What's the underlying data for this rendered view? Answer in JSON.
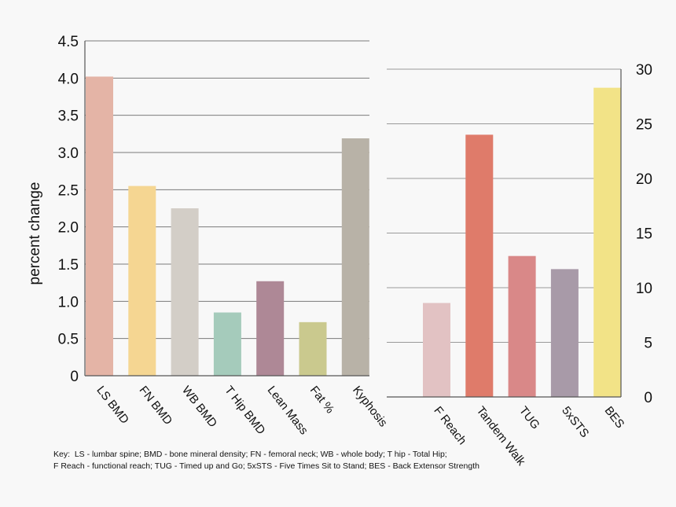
{
  "chart_data": [
    {
      "type": "bar",
      "ylabel": "percent change",
      "ylim": [
        0,
        4.5
      ],
      "yticks": [
        "0",
        "0.5",
        "1.0",
        "1.5",
        "2.0",
        "2.5",
        "3.0",
        "3.5",
        "4.0",
        "4.5"
      ],
      "grid": true,
      "categories": [
        "LS BMD",
        "FN BMD",
        "WB BMD",
        "T Hip BMD",
        "Lean Mass",
        "Fat %",
        "Kyphosis"
      ],
      "values": [
        4.02,
        2.55,
        2.25,
        0.85,
        1.27,
        0.72,
        3.19
      ],
      "colors": [
        "#e4b4a6",
        "#f5d692",
        "#d3cec7",
        "#a5cbbb",
        "#ae8896",
        "#cac98e",
        "#b8b2a7"
      ]
    },
    {
      "type": "bar",
      "ylim": [
        0,
        30
      ],
      "yticks": [
        "0",
        "5",
        "10",
        "15",
        "20",
        "25",
        "30"
      ],
      "grid": true,
      "categories": [
        "F Reach",
        "Tandem Walk",
        "TUG",
        "5xSTS",
        "BES"
      ],
      "values": [
        8.6,
        24.0,
        12.9,
        11.7,
        28.3
      ],
      "colors": [
        "#e2c2c3",
        "#df7b6a",
        "#d98888",
        "#a89aa8",
        "#f2e387"
      ]
    }
  ],
  "key": {
    "line1": "Key:  LS - lumbar spine; BMD - bone mineral density; FN - femoral neck; WB - whole body; T hip - Total Hip;",
    "line2": "F Reach - functional reach; TUG - Timed up and Go; 5xSTS - Five Times Sit to Stand; BES - Back Extensor Strength"
  }
}
